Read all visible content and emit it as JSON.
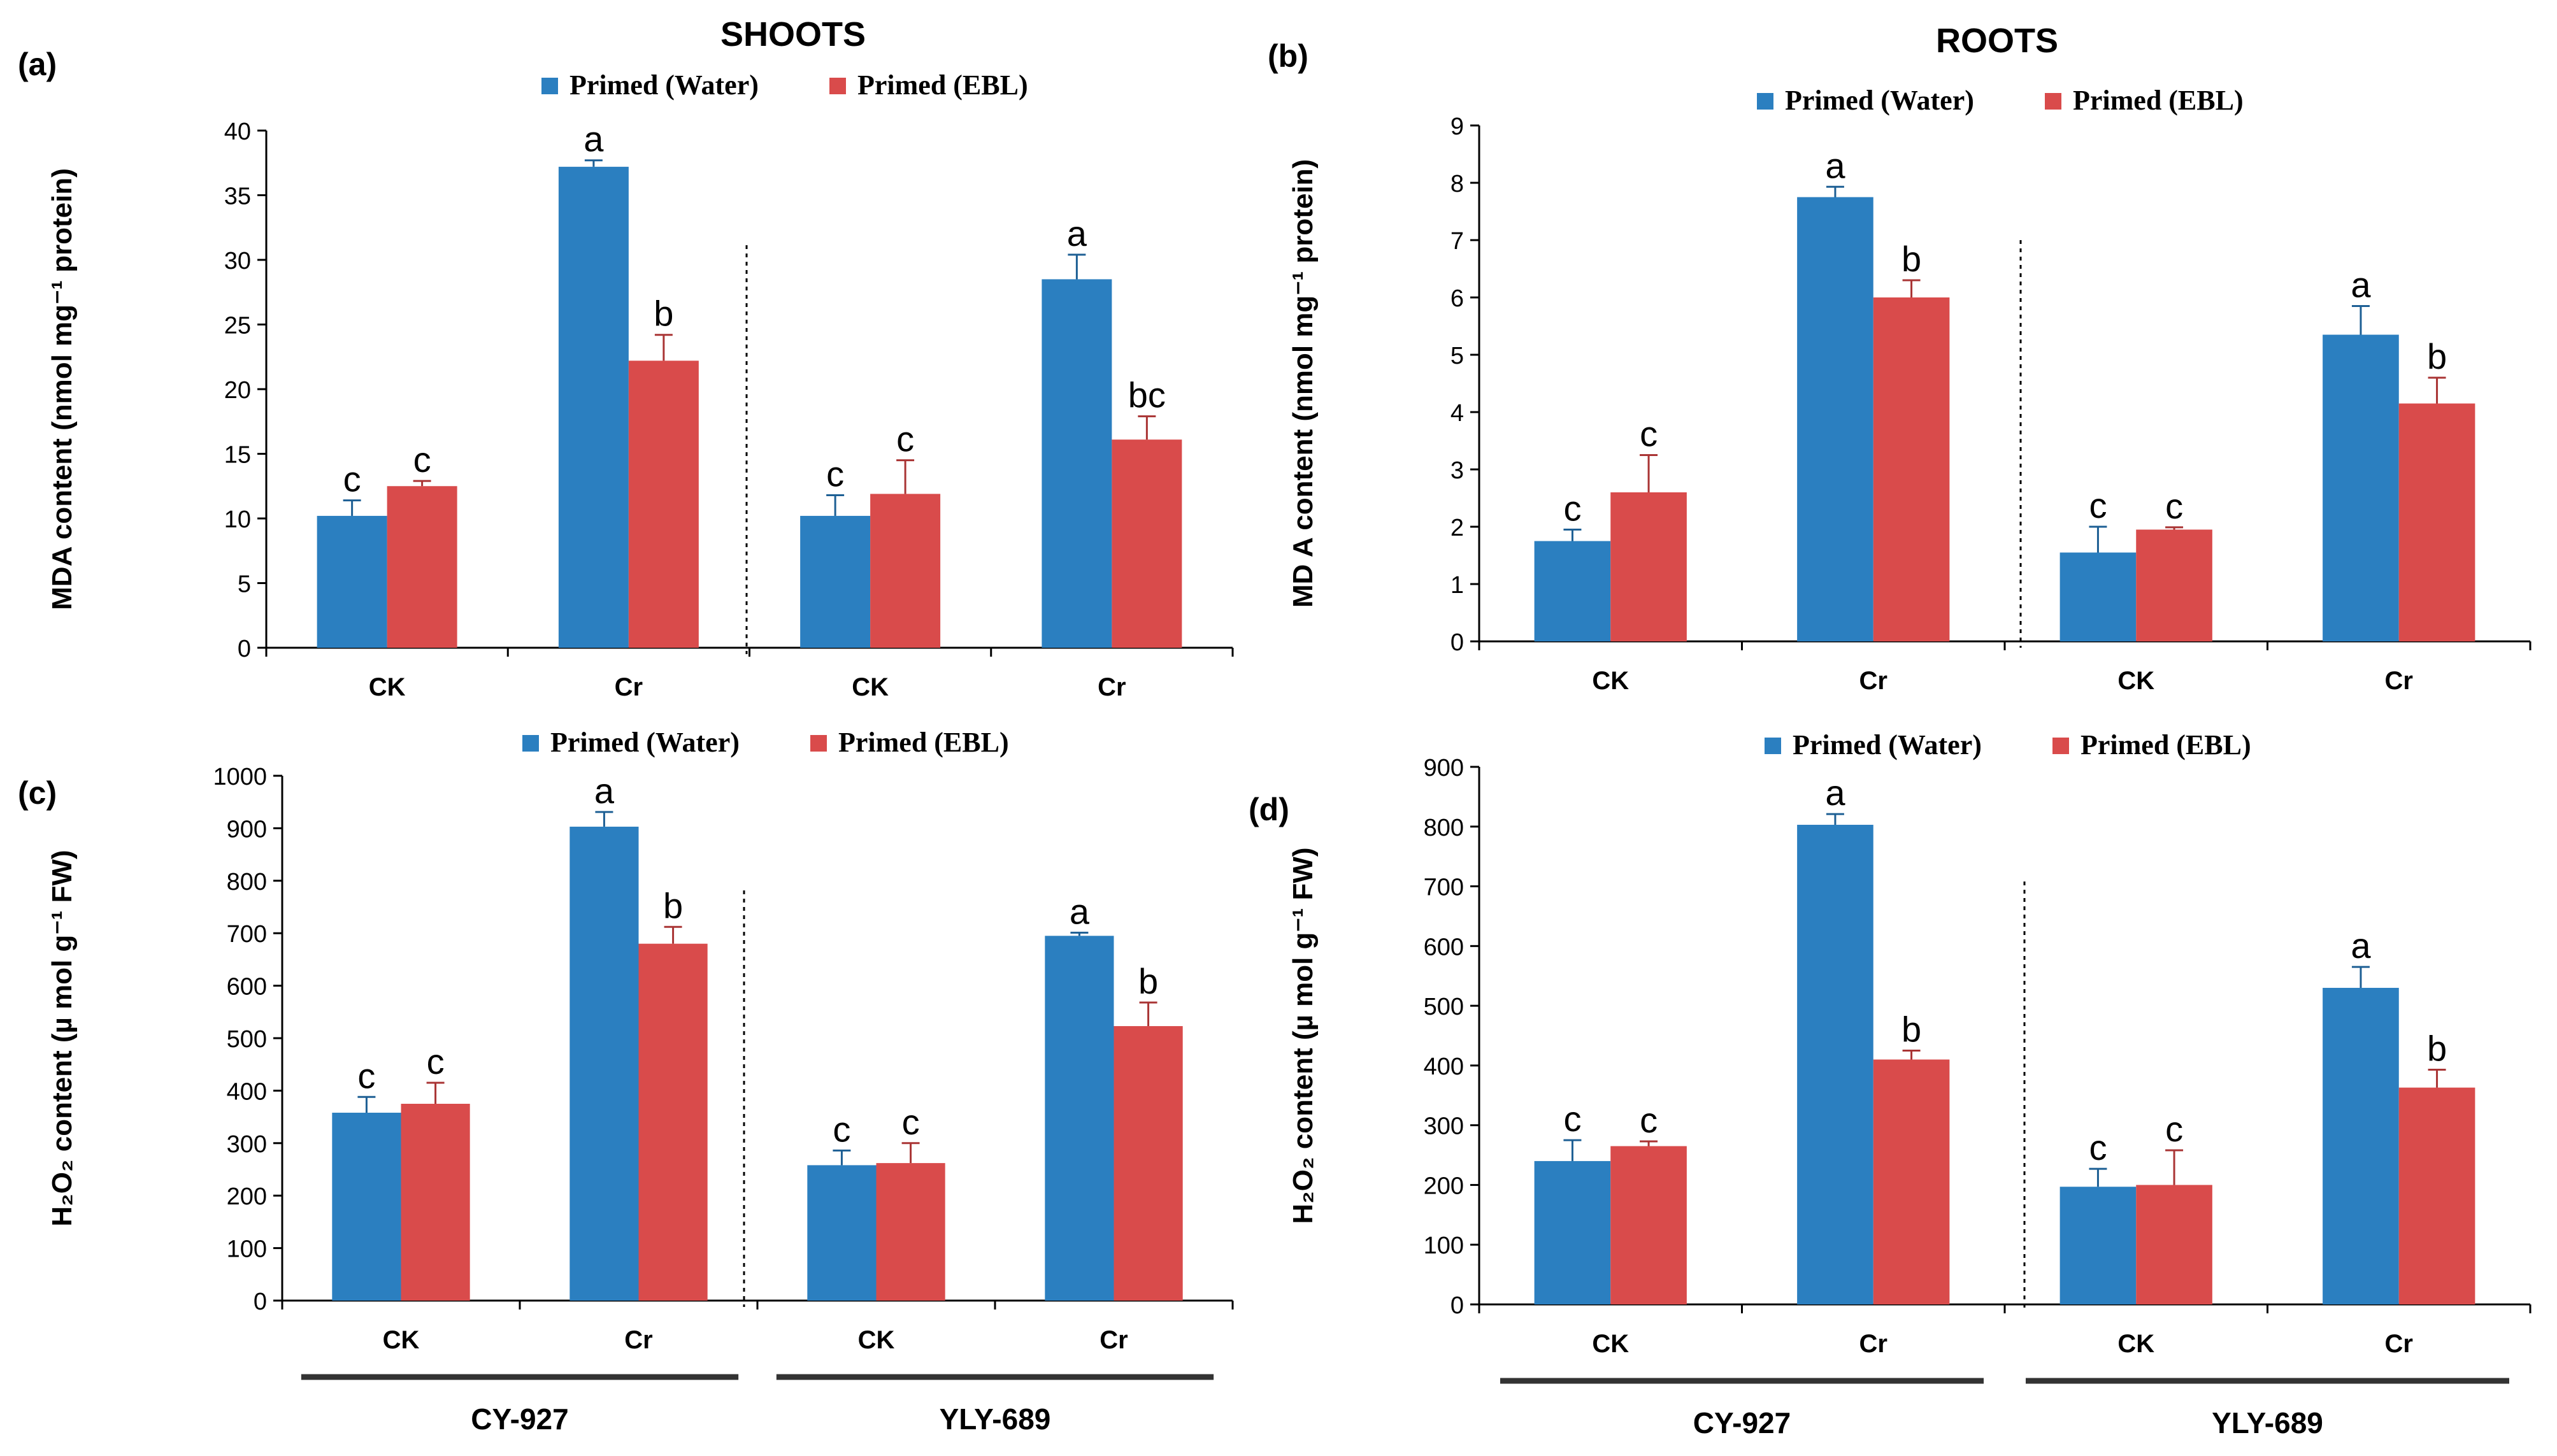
{
  "figure": {
    "shoots_header": "SHOOTS",
    "roots_header": "ROOTS",
    "cultivars": [
      "CY-927",
      "YLY-689"
    ]
  },
  "legend": {
    "water": "Primed (Water)",
    "ebl": "Primed (EBL)"
  },
  "colors": {
    "water": "#2b7fc0",
    "ebl": "#d94b4b"
  },
  "chart_data": [
    {
      "id": "a",
      "panel_label": "(a)",
      "type": "bar",
      "ylabel": "MDA content (nmol mg⁻¹ protein)",
      "ylim": [
        0,
        40
      ],
      "yticks": [
        0,
        5,
        10,
        15,
        20,
        25,
        30,
        35,
        40
      ],
      "categories": [
        "CK",
        "Cr",
        "CK",
        "Cr"
      ],
      "series": [
        {
          "name": "Primed (Water)",
          "values": [
            10.2,
            37.2,
            10.2,
            28.5
          ],
          "errors": [
            1.2,
            0.5,
            1.6,
            1.9
          ],
          "letters": [
            "c",
            "a",
            "c",
            "a"
          ]
        },
        {
          "name": "Primed (EBL)",
          "values": [
            12.5,
            22.2,
            11.9,
            16.1
          ],
          "errors": [
            0.4,
            2.0,
            2.6,
            1.8
          ],
          "letters": [
            "c",
            "b",
            "c",
            "bc"
          ]
        }
      ],
      "underbar": false
    },
    {
      "id": "b",
      "panel_label": "(b)",
      "type": "bar",
      "ylabel": "MD A content (nmol mg⁻¹ protein)",
      "ylim": [
        0,
        9
      ],
      "yticks": [
        0,
        1,
        2,
        3,
        4,
        5,
        6,
        7,
        8,
        9
      ],
      "categories": [
        "CK",
        "Cr",
        "CK",
        "Cr"
      ],
      "series": [
        {
          "name": "Primed (Water)",
          "values": [
            1.75,
            7.75,
            1.55,
            5.35
          ],
          "errors": [
            0.2,
            0.18,
            0.45,
            0.5
          ],
          "letters": [
            "c",
            "a",
            "c",
            "a"
          ]
        },
        {
          "name": "Primed (EBL)",
          "values": [
            2.6,
            6.0,
            1.95,
            4.15
          ],
          "errors": [
            0.65,
            0.3,
            0.04,
            0.45
          ],
          "letters": [
            "c",
            "b",
            "c",
            "b"
          ]
        }
      ],
      "underbar": false
    },
    {
      "id": "c",
      "panel_label": "(c)",
      "type": "bar",
      "ylabel": "H₂O₂ content (µ mol g⁻¹ FW)",
      "ylim": [
        0,
        1000
      ],
      "yticks": [
        0,
        100,
        200,
        300,
        400,
        500,
        600,
        700,
        800,
        900,
        1000
      ],
      "categories": [
        "CK",
        "Cr",
        "CK",
        "Cr"
      ],
      "series": [
        {
          "name": "Primed (Water)",
          "values": [
            358,
            903,
            258,
            695
          ],
          "errors": [
            30,
            28,
            28,
            6
          ],
          "letters": [
            "c",
            "a",
            "c",
            "a"
          ]
        },
        {
          "name": "Primed (EBL)",
          "values": [
            375,
            680,
            262,
            523
          ],
          "errors": [
            40,
            32,
            38,
            45
          ],
          "letters": [
            "c",
            "b",
            "c",
            "b"
          ]
        }
      ],
      "underbar": true
    },
    {
      "id": "d",
      "panel_label": "(d)",
      "type": "bar",
      "ylabel": "H₂O₂ content (µ mol g⁻¹ FW)",
      "ylim": [
        0,
        900
      ],
      "yticks": [
        0,
        100,
        200,
        300,
        400,
        500,
        600,
        700,
        800,
        900
      ],
      "categories": [
        "CK",
        "Cr",
        "CK",
        "Cr"
      ],
      "series": [
        {
          "name": "Primed (Water)",
          "values": [
            240,
            803,
            197,
            530
          ],
          "errors": [
            35,
            18,
            30,
            35
          ],
          "letters": [
            "c",
            "a",
            "c",
            "a"
          ]
        },
        {
          "name": "Primed (EBL)",
          "values": [
            265,
            410,
            200,
            363
          ],
          "errors": [
            8,
            15,
            58,
            30
          ],
          "letters": [
            "c",
            "b",
            "c",
            "b"
          ]
        }
      ],
      "underbar": true
    }
  ]
}
